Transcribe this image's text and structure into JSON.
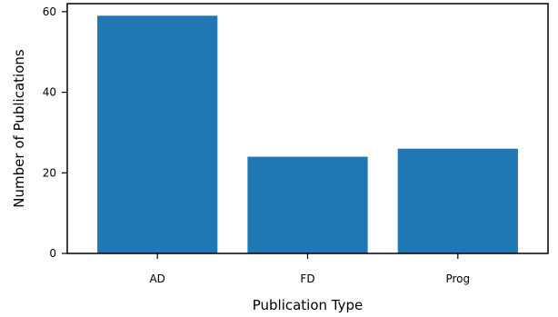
{
  "chart_data": {
    "type": "bar",
    "categories": [
      "AD",
      "FD",
      "Prog"
    ],
    "values": [
      59,
      24,
      26
    ],
    "title": "",
    "xlabel": "Publication Type",
    "ylabel": "Number of Publications",
    "ylim": [
      0,
      62
    ],
    "yticks": [
      0,
      20,
      40,
      60
    ],
    "grid": false,
    "bar_color": "#1f77b4"
  }
}
